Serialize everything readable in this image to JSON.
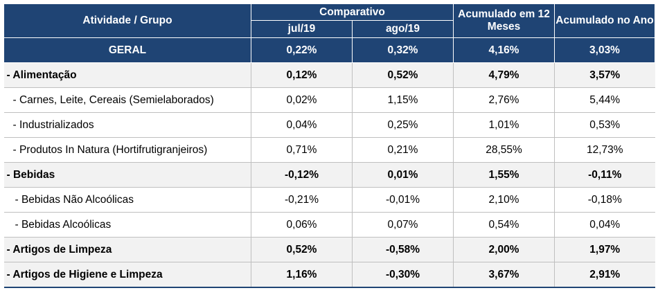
{
  "header": {
    "col_activity": "Atividade / Grupo",
    "col_comparativo": "Comparativo",
    "col_jul": "jul/19",
    "col_ago": "ago/19",
    "col_12m": "Acumulado em 12 Meses",
    "col_ano": "Acumulado no Ano"
  },
  "geral": {
    "label": "GERAL",
    "jul": "0,22%",
    "ago": "0,32%",
    "m12": "4,16%",
    "ano": "3,03%"
  },
  "rows": [
    {
      "label": "- Alimentação",
      "jul": "0,12%",
      "ago": "0,52%",
      "m12": "4,79%",
      "ano": "3,57%"
    },
    {
      "label": "- Carnes, Leite, Cereais (Semielaborados)",
      "jul": "0,02%",
      "ago": "1,15%",
      "m12": "2,76%",
      "ano": "5,44%"
    },
    {
      "label": "- Industrializados",
      "jul": "0,04%",
      "ago": "0,25%",
      "m12": "1,01%",
      "ano": "0,53%"
    },
    {
      "label": "- Produtos In Natura (Hortifrutigranjeiros)",
      "jul": "0,71%",
      "ago": "0,21%",
      "m12": "28,55%",
      "ano": "12,73%"
    },
    {
      "label": "- Bebidas",
      "jul": "-0,12%",
      "ago": "0,01%",
      "m12": "1,55%",
      "ano": "-0,11%"
    },
    {
      "label": "- Bebidas Não Alcoólicas",
      "jul": "-0,21%",
      "ago": "-0,01%",
      "m12": "2,10%",
      "ano": "-0,18%"
    },
    {
      "label": "- Bebidas Alcoólicas",
      "jul": "0,06%",
      "ago": "0,07%",
      "m12": "0,54%",
      "ano": "0,04%"
    },
    {
      "label": "- Artigos de Limpeza",
      "jul": "0,52%",
      "ago": "-0,58%",
      "m12": "2,00%",
      "ano": "1,97%"
    },
    {
      "label": "- Artigos de Higiene e Limpeza",
      "jul": "1,16%",
      "ago": "-0,30%",
      "m12": "3,67%",
      "ano": "2,91%"
    }
  ]
}
